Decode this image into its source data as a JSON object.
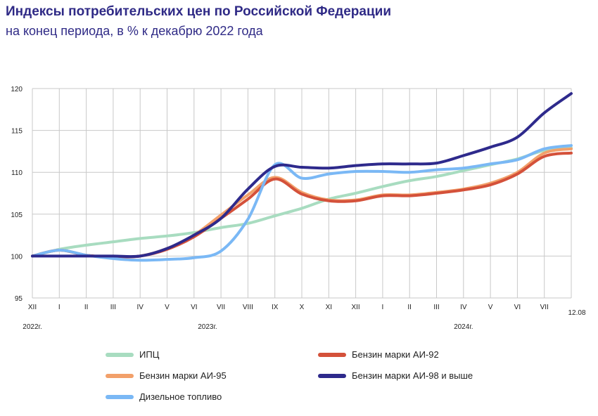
{
  "title": "Индексы потребительских цен по Российской Федерации",
  "subtitle": "на конец периода, в % к декабрю 2022 года",
  "chart_data": {
    "type": "line",
    "x": [
      "XII",
      "I",
      "II",
      "III",
      "IV",
      "V",
      "VI",
      "VII",
      "VIII",
      "IX",
      "X",
      "XI",
      "XII",
      "I",
      "II",
      "III",
      "IV",
      "V",
      "VI",
      "VII",
      "12.08"
    ],
    "year_labels": [
      {
        "label": "2022г.",
        "index": 0
      },
      {
        "label": "2023г.",
        "index": 6.5
      },
      {
        "label": "2024г.",
        "index": 16
      }
    ],
    "ylim": [
      95,
      120
    ],
    "yticks": [
      95,
      100,
      105,
      110,
      115,
      120
    ],
    "grid": true,
    "legend_position": "bottom",
    "series": [
      {
        "name": "ИПЦ",
        "color": "#a8dcc0",
        "values": [
          100,
          100.8,
          101.3,
          101.7,
          102.1,
          102.4,
          102.8,
          103.4,
          103.9,
          104.8,
          105.7,
          106.8,
          107.5,
          108.3,
          109.0,
          109.5,
          110.2,
          110.9,
          111.6,
          112.6,
          112.9
        ]
      },
      {
        "name": "Бензин марки АИ-92",
        "color": "#d4513a",
        "values": [
          100,
          100.7,
          100.1,
          99.9,
          100,
          100.8,
          102.3,
          104.5,
          106.8,
          109.2,
          107.4,
          106.6,
          106.6,
          107.2,
          107.2,
          107.5,
          107.9,
          108.5,
          109.8,
          111.9,
          112.3
        ]
      },
      {
        "name": "Бензин марки АИ-95",
        "color": "#f2a06a",
        "values": [
          100,
          100.7,
          100.1,
          99.9,
          100,
          100.9,
          102.5,
          104.9,
          107.3,
          109.4,
          107.6,
          106.7,
          106.7,
          107.3,
          107.3,
          107.6,
          108.0,
          108.7,
          110.0,
          112.3,
          112.8
        ]
      },
      {
        "name": "Бензин марки АИ-98 и выше",
        "color": "#2e2a8c",
        "values": [
          100,
          100,
          100,
          100,
          100,
          100.9,
          102.5,
          104.5,
          108.0,
          110.7,
          110.6,
          110.5,
          110.8,
          111,
          111,
          111.1,
          112,
          113,
          114.2,
          117.1,
          119.4
        ]
      },
      {
        "name": "Дизельное топливо",
        "color": "#7ab8f5",
        "values": [
          100,
          100.7,
          100.1,
          99.7,
          99.5,
          99.6,
          99.8,
          100.6,
          104.4,
          110.9,
          109.3,
          109.8,
          110.1,
          110.1,
          110.0,
          110.3,
          110.5,
          111,
          111.5,
          112.8,
          113.2
        ]
      }
    ]
  }
}
